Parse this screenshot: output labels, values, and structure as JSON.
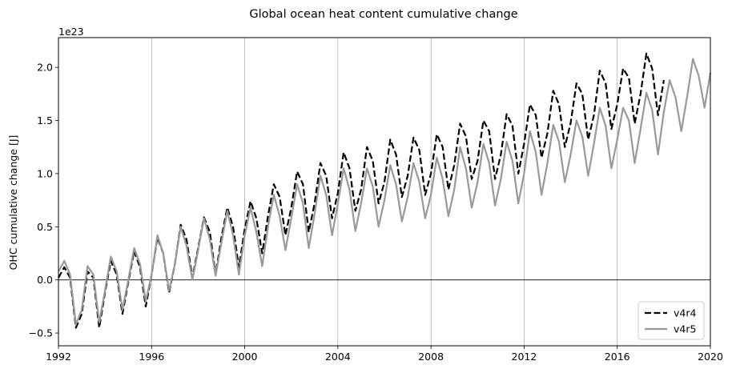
{
  "chart_data": {
    "type": "line",
    "title": "Global ocean heat content cumulative change",
    "xlabel": "",
    "ylabel": "OHC cumulative change [J]",
    "y_offset_text": "1e23",
    "xlim": [
      1992,
      2020
    ],
    "ylim": [
      -0.62,
      2.28
    ],
    "x_ticks": [
      1992,
      1996,
      2000,
      2004,
      2008,
      2012,
      2016,
      2020
    ],
    "x_tick_labels": [
      "1992",
      "1996",
      "2000",
      "2004",
      "2008",
      "2012",
      "2016",
      "2020"
    ],
    "y_ticks": [
      -0.5,
      0.0,
      0.5,
      1.0,
      1.5,
      2.0
    ],
    "y_tick_labels": [
      "−0.5",
      "0.0",
      "0.5",
      "1.0",
      "1.5",
      "2.0"
    ],
    "grid": "vertical gridlines at x ticks",
    "zero_line": true,
    "legend_position": "lower-right",
    "series": [
      {
        "name": "v4r4",
        "color": "#000000",
        "style": "dashed",
        "x": [
          1992.0,
          1992.25,
          1992.5,
          1992.75,
          1993.0,
          1993.25,
          1993.5,
          1993.75,
          1994.0,
          1994.25,
          1994.5,
          1994.75,
          1995.0,
          1995.25,
          1995.5,
          1995.75,
          1996.0,
          1996.25,
          1996.5,
          1996.75,
          1997.0,
          1997.25,
          1997.5,
          1997.75,
          1998.0,
          1998.25,
          1998.5,
          1998.75,
          1999.0,
          1999.25,
          1999.5,
          1999.75,
          2000.0,
          2000.25,
          2000.5,
          2000.75,
          2001.0,
          2001.25,
          2001.5,
          2001.75,
          2002.0,
          2002.25,
          2002.5,
          2002.75,
          2003.0,
          2003.25,
          2003.5,
          2003.75,
          2004.0,
          2004.25,
          2004.5,
          2004.75,
          2005.0,
          2005.25,
          2005.5,
          2005.75,
          2006.0,
          2006.25,
          2006.5,
          2006.75,
          2007.0,
          2007.25,
          2007.5,
          2007.75,
          2008.0,
          2008.25,
          2008.5,
          2008.75,
          2009.0,
          2009.25,
          2009.5,
          2009.75,
          2010.0,
          2010.25,
          2010.5,
          2010.75,
          2011.0,
          2011.25,
          2011.5,
          2011.75,
          2012.0,
          2012.25,
          2012.5,
          2012.75,
          2013.0,
          2013.25,
          2013.5,
          2013.75,
          2014.0,
          2014.25,
          2014.5,
          2014.75,
          2015.0,
          2015.25,
          2015.5,
          2015.75,
          2016.0,
          2016.25,
          2016.5,
          2016.75,
          2017.0,
          2017.25,
          2017.5,
          2017.75,
          2018.0
        ],
        "values": [
          0.02,
          0.12,
          0.02,
          -0.45,
          -0.32,
          0.08,
          0.02,
          -0.45,
          -0.12,
          0.18,
          0.05,
          -0.32,
          -0.02,
          0.27,
          0.12,
          -0.25,
          0.05,
          0.4,
          0.25,
          -0.12,
          0.15,
          0.52,
          0.38,
          0.02,
          0.3,
          0.59,
          0.45,
          0.05,
          0.4,
          0.68,
          0.5,
          0.12,
          0.48,
          0.74,
          0.58,
          0.25,
          0.6,
          0.9,
          0.78,
          0.42,
          0.68,
          1.02,
          0.9,
          0.45,
          0.72,
          1.1,
          0.98,
          0.58,
          0.82,
          1.2,
          1.05,
          0.65,
          0.85,
          1.25,
          1.12,
          0.72,
          0.92,
          1.32,
          1.18,
          0.78,
          0.98,
          1.34,
          1.22,
          0.8,
          1.0,
          1.37,
          1.25,
          0.85,
          1.08,
          1.47,
          1.35,
          0.95,
          1.12,
          1.5,
          1.4,
          0.95,
          1.18,
          1.56,
          1.45,
          1.0,
          1.28,
          1.65,
          1.55,
          1.15,
          1.38,
          1.78,
          1.65,
          1.25,
          1.48,
          1.85,
          1.75,
          1.32,
          1.55,
          1.97,
          1.85,
          1.42,
          1.65,
          1.99,
          1.9,
          1.47,
          1.75,
          2.13,
          1.99,
          1.55,
          1.88
        ]
      },
      {
        "name": "v4r5",
        "color": "#999999",
        "style": "solid",
        "x": [
          1992.0,
          1992.25,
          1992.5,
          1992.75,
          1993.0,
          1993.25,
          1993.5,
          1993.75,
          1994.0,
          1994.25,
          1994.5,
          1994.75,
          1995.0,
          1995.25,
          1995.5,
          1995.75,
          1996.0,
          1996.25,
          1996.5,
          1996.75,
          1997.0,
          1997.25,
          1997.5,
          1997.75,
          1998.0,
          1998.25,
          1998.5,
          1998.75,
          1999.0,
          1999.25,
          1999.5,
          1999.75,
          2000.0,
          2000.25,
          2000.5,
          2000.75,
          2001.0,
          2001.25,
          2001.5,
          2001.75,
          2002.0,
          2002.25,
          2002.5,
          2002.75,
          2003.0,
          2003.25,
          2003.5,
          2003.75,
          2004.0,
          2004.25,
          2004.5,
          2004.75,
          2005.0,
          2005.25,
          2005.5,
          2005.75,
          2006.0,
          2006.25,
          2006.5,
          2006.75,
          2007.0,
          2007.25,
          2007.5,
          2007.75,
          2008.0,
          2008.25,
          2008.5,
          2008.75,
          2009.0,
          2009.25,
          2009.5,
          2009.75,
          2010.0,
          2010.25,
          2010.5,
          2010.75,
          2011.0,
          2011.25,
          2011.5,
          2011.75,
          2012.0,
          2012.25,
          2012.5,
          2012.75,
          2013.0,
          2013.25,
          2013.5,
          2013.75,
          2014.0,
          2014.25,
          2014.5,
          2014.75,
          2015.0,
          2015.25,
          2015.5,
          2015.75,
          2016.0,
          2016.25,
          2016.5,
          2016.75,
          2017.0,
          2017.25,
          2017.5,
          2017.75,
          2018.0,
          2018.25,
          2018.5,
          2018.75,
          2019.0,
          2019.25,
          2019.5,
          2019.75,
          2020.0
        ],
        "values": [
          0.08,
          0.18,
          0.05,
          -0.42,
          -0.28,
          0.13,
          0.05,
          -0.4,
          -0.1,
          0.22,
          0.08,
          -0.28,
          0.0,
          0.3,
          0.15,
          -0.2,
          0.05,
          0.42,
          0.25,
          -0.1,
          0.15,
          0.5,
          0.32,
          0.0,
          0.28,
          0.58,
          0.38,
          0.04,
          0.35,
          0.65,
          0.42,
          0.05,
          0.42,
          0.68,
          0.45,
          0.13,
          0.5,
          0.8,
          0.6,
          0.28,
          0.58,
          0.9,
          0.72,
          0.3,
          0.62,
          0.98,
          0.8,
          0.42,
          0.72,
          1.05,
          0.85,
          0.46,
          0.72,
          1.05,
          0.88,
          0.5,
          0.75,
          1.08,
          0.9,
          0.55,
          0.78,
          1.1,
          0.92,
          0.58,
          0.8,
          1.15,
          0.95,
          0.6,
          0.85,
          1.25,
          1.05,
          0.68,
          0.92,
          1.28,
          1.1,
          0.7,
          0.95,
          1.3,
          1.12,
          0.72,
          1.0,
          1.4,
          1.2,
          0.8,
          1.1,
          1.46,
          1.3,
          0.92,
          1.18,
          1.5,
          1.35,
          0.98,
          1.28,
          1.62,
          1.45,
          1.05,
          1.32,
          1.62,
          1.5,
          1.1,
          1.42,
          1.76,
          1.6,
          1.18,
          1.58,
          1.88,
          1.72,
          1.4,
          1.72,
          2.08,
          1.92,
          1.62,
          1.95
        ]
      }
    ]
  }
}
